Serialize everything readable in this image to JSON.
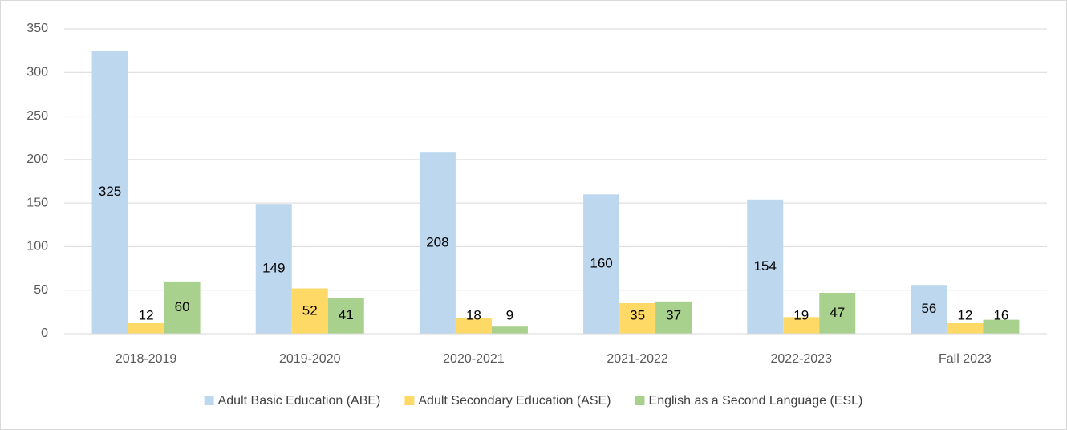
{
  "chart_data": {
    "type": "bar",
    "categories": [
      "2018-2019",
      "2019-2020",
      "2020-2021",
      "2021-2022",
      "2022-2023",
      "Fall 2023"
    ],
    "series": [
      {
        "name": "Adult Basic Education (ABE)",
        "color": "#bdd7ee",
        "values": [
          325,
          149,
          208,
          160,
          154,
          56
        ]
      },
      {
        "name": "Adult Secondary Education (ASE)",
        "color": "#ffd966",
        "values": [
          12,
          52,
          18,
          35,
          19,
          12
        ]
      },
      {
        "name": "English as a Second Language (ESL)",
        "color": "#a9d18e",
        "values": [
          60,
          41,
          9,
          37,
          47,
          16
        ]
      }
    ],
    "ylim": [
      0,
      350
    ],
    "yticks": [
      0,
      50,
      100,
      150,
      200,
      250,
      300,
      350
    ],
    "grid": true,
    "legend": "bottom"
  }
}
